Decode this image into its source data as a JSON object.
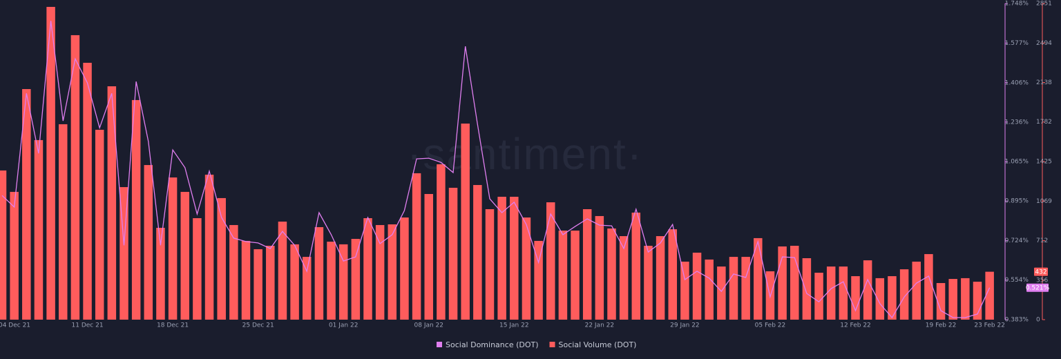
{
  "chart_data": {
    "type": "bar",
    "watermark": "·santiment·",
    "categories": [
      "04 Dec 21",
      null,
      null,
      null,
      null,
      null,
      null,
      "11 Dec 21",
      null,
      null,
      null,
      null,
      null,
      null,
      "18 Dec 21",
      null,
      null,
      null,
      null,
      null,
      null,
      "25 Dec 21",
      null,
      null,
      null,
      null,
      null,
      null,
      "01 Jan 22",
      null,
      null,
      null,
      null,
      null,
      null,
      "08 Jan 22",
      null,
      null,
      null,
      null,
      null,
      null,
      "15 Jan 22",
      null,
      null,
      null,
      null,
      null,
      null,
      "22 Jan 22",
      null,
      null,
      null,
      null,
      null,
      null,
      "29 Jan 22",
      null,
      null,
      null,
      null,
      null,
      null,
      "05 Feb 22",
      null,
      null,
      null,
      null,
      null,
      null,
      "12 Feb 22",
      null,
      null,
      null,
      null,
      null,
      null,
      "19 Feb 22",
      null,
      null,
      null,
      "23 Feb 22"
    ],
    "series": [
      {
        "name": "Social Dominance (DOT)",
        "type": "line",
        "axis": "y",
        "color": "#e07ff0",
        "values": [
          0.919,
          0.869,
          1.36,
          1.101,
          1.673,
          1.241,
          1.509,
          1.405,
          1.211,
          1.36,
          0.704,
          1.411,
          1.152,
          0.704,
          1.116,
          1.039,
          0.839,
          1.024,
          0.824,
          0.735,
          0.72,
          0.714,
          0.69,
          0.764,
          0.704,
          0.592,
          0.845,
          0.75,
          0.636,
          0.654,
          0.824,
          0.711,
          0.75,
          0.854,
          1.077,
          1.08,
          1.062,
          1.018,
          1.563,
          1.226,
          0.905,
          0.845,
          0.89,
          0.794,
          0.63,
          0.839,
          0.75,
          0.785,
          0.818,
          0.791,
          0.788,
          0.69,
          0.86,
          0.675,
          0.714,
          0.794,
          0.556,
          0.592,
          0.562,
          0.505,
          0.58,
          0.565,
          0.72,
          0.481,
          0.654,
          0.651,
          0.496,
          0.46,
          0.517,
          0.547,
          0.422,
          0.556,
          0.452,
          0.392,
          0.481,
          0.541,
          0.571,
          0.422,
          0.392,
          0.392,
          0.407,
          0.521
        ],
        "value_labels": [
          null,
          null,
          null,
          null,
          null,
          null,
          null,
          null,
          null,
          null,
          null,
          null,
          null,
          null,
          null,
          null,
          null,
          null,
          null,
          null,
          null,
          null,
          null,
          null,
          null,
          null,
          null,
          null,
          null,
          null,
          null,
          null,
          null,
          null,
          null,
          null,
          null,
          null,
          null,
          null,
          null,
          null,
          null,
          null,
          null,
          null,
          null,
          null,
          null,
          null,
          null,
          null,
          null,
          null,
          null,
          null,
          null,
          null,
          null,
          null,
          null,
          null,
          null,
          null,
          null,
          null,
          null,
          null,
          null,
          null,
          null,
          null,
          null,
          null,
          null,
          null,
          null,
          null,
          null,
          null,
          null,
          "0.521%"
        ]
      },
      {
        "name": "Social Volume (DOT)",
        "type": "bar",
        "axis": "y2",
        "color": "#ff5c5c",
        "values": [
          1345,
          1152,
          2079,
          1619,
          2820,
          1762,
          2565,
          2316,
          1712,
          2104,
          1195,
          1980,
          1394,
          828,
          1282,
          1152,
          915,
          1307,
          1096,
          853,
          710,
          635,
          666,
          884,
          679,
          566,
          834,
          703,
          679,
          728,
          915,
          853,
          859,
          921,
          1320,
          1133,
          1401,
          1189,
          1768,
          1214,
          996,
          1108,
          1108,
          921,
          710,
          1058,
          803,
          803,
          996,
          934,
          822,
          753,
          965,
          666,
          753,
          815,
          523,
          604,
          542,
          479,
          566,
          566,
          735,
          436,
          660,
          666,
          554,
          423,
          479,
          479,
          392,
          535,
          374,
          392,
          454,
          523,
          591,
          330,
          367,
          374,
          342,
          432
        ]
      }
    ],
    "ylim": [
      0.383,
      1.748
    ],
    "yticks": [
      {
        "value": 0.383,
        "label": "0.383%"
      },
      {
        "value": 0.554,
        "label": "0.554%"
      },
      {
        "value": 0.724,
        "label": "0.724%"
      },
      {
        "value": 0.895,
        "label": "0.895%"
      },
      {
        "value": 1.065,
        "label": "1.065%"
      },
      {
        "value": 1.236,
        "label": "1.236%"
      },
      {
        "value": 1.406,
        "label": "1.406%"
      },
      {
        "value": 1.577,
        "label": "1.577%"
      },
      {
        "value": 1.748,
        "label": "1.748%"
      }
    ],
    "y2lim": [
      0,
      2851
    ],
    "y2ticks": [
      0,
      356,
      712,
      1069,
      1425,
      1782,
      2138,
      2494,
      2851
    ],
    "legend": "bottom"
  }
}
